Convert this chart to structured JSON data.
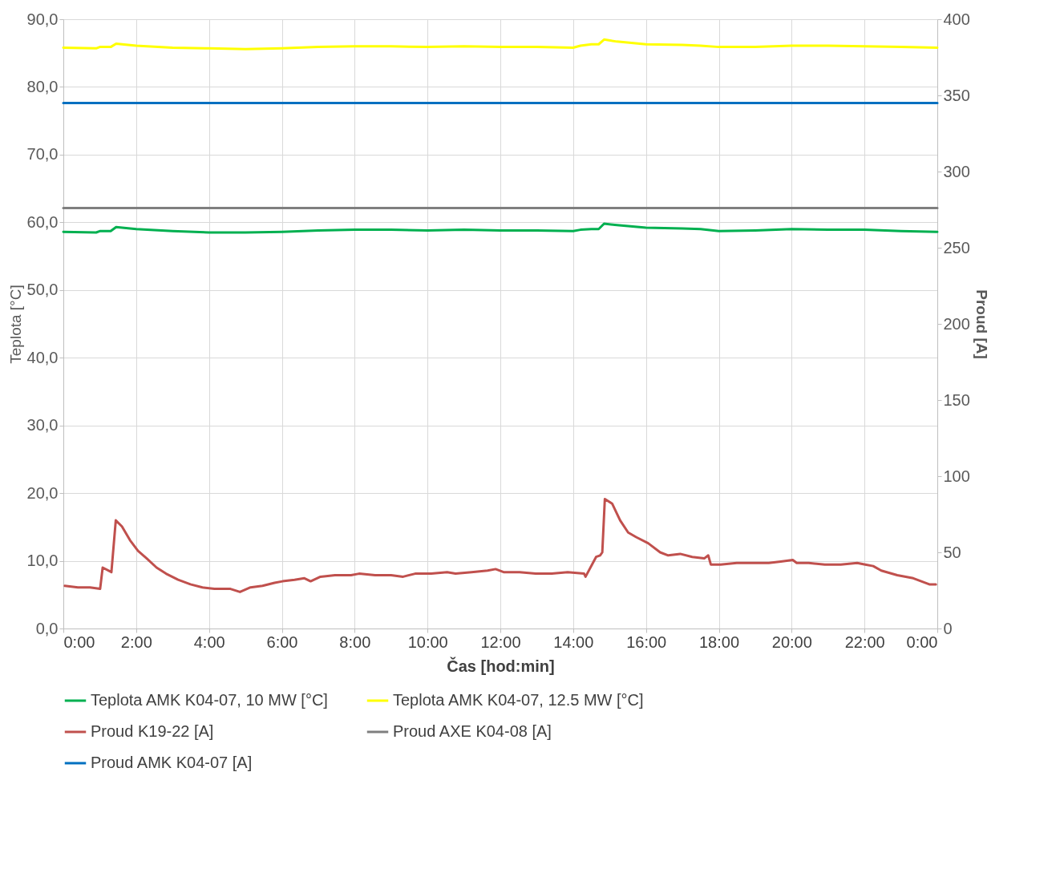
{
  "chart_data": {
    "type": "line",
    "xlabel": "Čas [hod:min]",
    "ylabel": "Teplota [°C]",
    "y2label": "Proud [A]",
    "xlim": [
      0,
      24
    ],
    "xticks": [
      {
        "value": 0,
        "label": "0:00"
      },
      {
        "value": 2,
        "label": "2:00"
      },
      {
        "value": 4,
        "label": "4:00"
      },
      {
        "value": 6,
        "label": "6:00"
      },
      {
        "value": 8,
        "label": "8:00"
      },
      {
        "value": 10,
        "label": "10:00"
      },
      {
        "value": 12,
        "label": "12:00"
      },
      {
        "value": 14,
        "label": "14:00"
      },
      {
        "value": 16,
        "label": "16:00"
      },
      {
        "value": 18,
        "label": "18:00"
      },
      {
        "value": 20,
        "label": "20:00"
      },
      {
        "value": 22,
        "label": "22:00"
      },
      {
        "value": 24,
        "label": "0:00"
      }
    ],
    "ylim": [
      0,
      90
    ],
    "yticks": [
      {
        "value": 0,
        "label": "0,0"
      },
      {
        "value": 10,
        "label": "10,0"
      },
      {
        "value": 20,
        "label": "20,0"
      },
      {
        "value": 30,
        "label": "30,0"
      },
      {
        "value": 40,
        "label": "40,0"
      },
      {
        "value": 50,
        "label": "50,0"
      },
      {
        "value": 60,
        "label": "60,0"
      },
      {
        "value": 70,
        "label": "70,0"
      },
      {
        "value": 80,
        "label": "80,0"
      },
      {
        "value": 90,
        "label": "90,0"
      }
    ],
    "y2lim": [
      0,
      400
    ],
    "y2ticks": [
      0,
      50,
      100,
      150,
      200,
      250,
      300,
      350,
      400
    ],
    "grid": true,
    "legend": "bottom",
    "x": [
      0,
      0.9,
      1.0,
      1.3,
      1.45,
      2,
      3,
      4,
      5,
      6,
      7,
      8,
      9,
      10,
      11,
      12,
      13,
      14,
      14.2,
      14.5,
      14.7,
      14.85,
      15.2,
      16,
      17,
      17.5,
      18,
      19,
      20,
      21,
      22,
      23,
      24
    ],
    "series": [
      {
        "name": "Teplota AMK K04-07, 10 MW [°C]",
        "color": "#00b050",
        "values": [
          58.6,
          58.5,
          58.7,
          58.7,
          59.3,
          59.0,
          58.7,
          58.5,
          58.5,
          58.6,
          58.8,
          58.9,
          58.9,
          58.8,
          58.9,
          58.8,
          58.8,
          58.7,
          58.9,
          59.0,
          59.0,
          59.8,
          59.6,
          59.2,
          59.1,
          59.0,
          58.7,
          58.8,
          59.0,
          58.9,
          58.9,
          58.7,
          58.6
        ]
      },
      {
        "name": "Teplota AMK K04-07, 12.5 MW [°C]",
        "color": "#ffff00",
        "values": [
          85.8,
          85.7,
          85.9,
          85.9,
          86.4,
          86.1,
          85.8,
          85.7,
          85.6,
          85.7,
          85.9,
          86.0,
          86.0,
          85.9,
          86.0,
          85.9,
          85.9,
          85.8,
          86.1,
          86.3,
          86.3,
          87.0,
          86.7,
          86.3,
          86.2,
          86.1,
          85.9,
          85.9,
          86.1,
          86.1,
          86.0,
          85.9,
          85.8
        ]
      },
      {
        "name": "Proud K19-22 [A]",
        "color": "#c0504d",
        "axis": "y2",
        "x": [
          0.04,
          0.4,
          0.73,
          1.01,
          1.08,
          1.32,
          1.44,
          1.61,
          1.83,
          2.05,
          2.29,
          2.56,
          2.82,
          3.15,
          3.49,
          3.82,
          4.15,
          4.59,
          4.85,
          5.14,
          5.47,
          5.8,
          6.02,
          6.35,
          6.62,
          6.79,
          7.06,
          7.46,
          7.9,
          8.12,
          8.56,
          9.0,
          9.33,
          9.66,
          10.1,
          10.54,
          10.77,
          11.21,
          11.65,
          11.87,
          12.09,
          12.53,
          12.97,
          13.41,
          13.85,
          14.3,
          14.34,
          14.63,
          14.74,
          14.8,
          14.87,
          15.07,
          15.29,
          15.51,
          15.73,
          16.06,
          16.39,
          16.61,
          16.94,
          17.27,
          17.6,
          17.71,
          17.78,
          18.05,
          18.49,
          18.93,
          19.37,
          19.7,
          20.03,
          20.14,
          20.47,
          20.91,
          21.35,
          21.8,
          22.02,
          22.24,
          22.46,
          22.9,
          23.34,
          23.56,
          23.78,
          23.96
        ],
        "values": [
          28,
          27,
          27,
          26,
          40,
          37,
          71,
          67,
          58,
          51,
          46,
          40,
          36,
          32,
          29,
          27,
          26,
          26,
          24,
          27,
          28,
          30,
          31,
          32,
          33,
          31,
          34,
          35,
          35,
          36,
          35,
          35,
          34,
          36,
          36,
          37,
          36,
          37,
          38,
          39,
          37,
          37,
          36,
          36,
          37,
          36,
          34,
          47,
          48,
          50,
          85,
          82,
          71,
          63,
          60,
          56,
          50,
          48,
          49,
          47,
          46,
          48,
          42,
          42,
          43,
          43,
          43,
          44,
          45,
          43,
          43,
          42,
          42,
          43,
          42,
          41,
          38,
          35,
          33,
          31,
          29,
          29
        ]
      },
      {
        "name": "Proud AXE K04-08 [A]",
        "color": "#7f7f7f",
        "axis": "y2",
        "x": [
          0,
          24
        ],
        "values": [
          276,
          276
        ]
      },
      {
        "name": "Proud AMK K04-07 [A]",
        "color": "#0070c0",
        "axis": "y2",
        "x": [
          0,
          24
        ],
        "values": [
          345,
          345
        ]
      }
    ]
  }
}
